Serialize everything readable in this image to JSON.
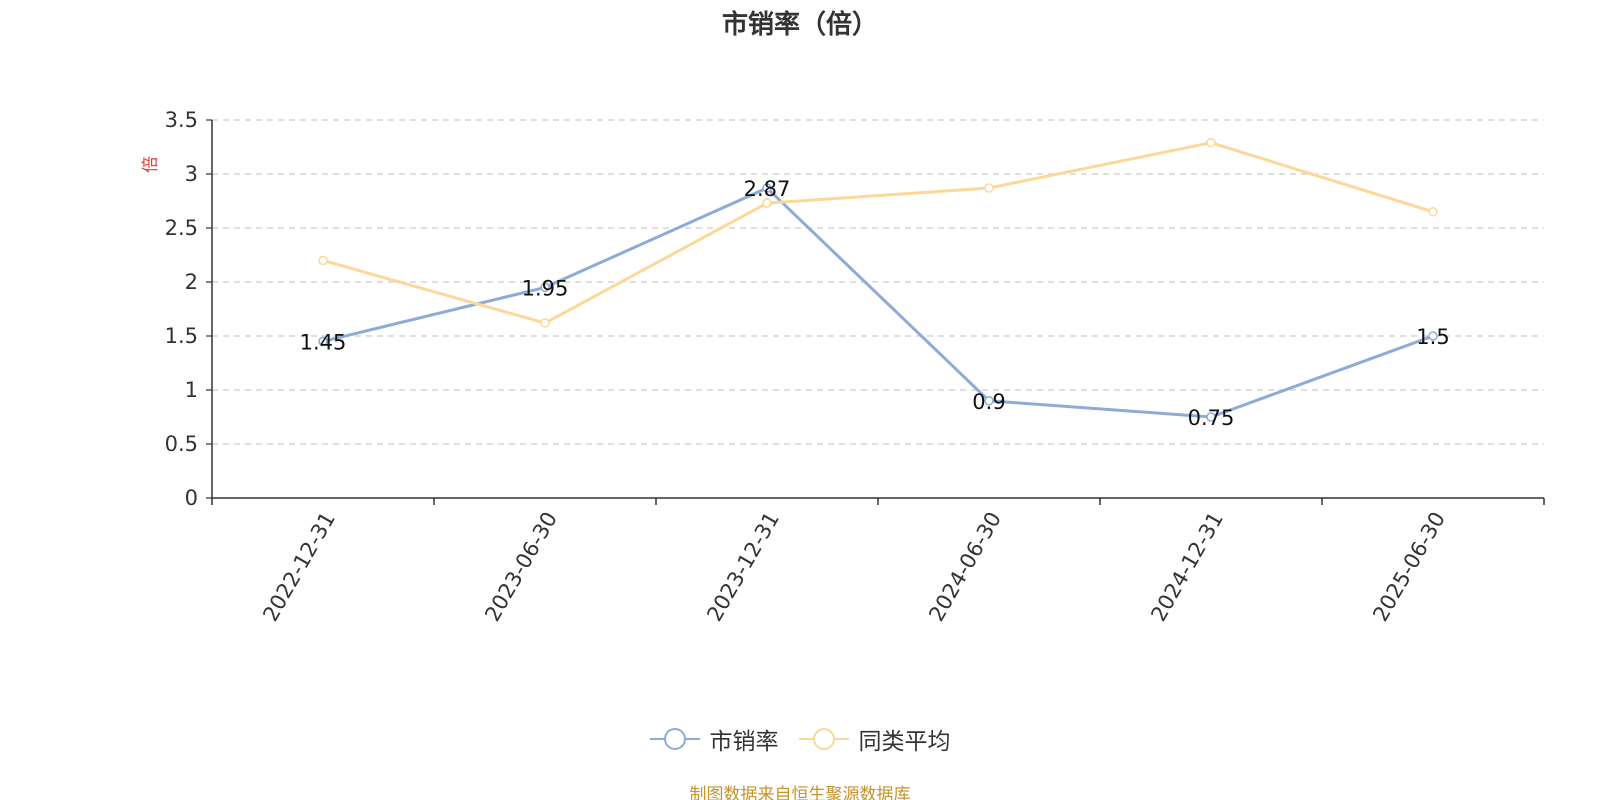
{
  "chart_data": {
    "type": "line",
    "title": "市销率（倍）",
    "ylabel": "倍",
    "xlabel": "",
    "categories": [
      "2022-12-31",
      "2023-06-30",
      "2023-12-31",
      "2024-06-30",
      "2024-12-31",
      "2025-06-30"
    ],
    "ylim": [
      0,
      3.5
    ],
    "yticks": [
      "0",
      "0.5",
      "1",
      "1.5",
      "2",
      "2.5",
      "3",
      "3.5"
    ],
    "grid": true,
    "legend_position": "bottom",
    "series": [
      {
        "name": "市销率",
        "color": "#8eabd6",
        "values": [
          1.45,
          1.95,
          2.87,
          0.9,
          0.75,
          1.5
        ],
        "labels": [
          "1.45",
          "1.95",
          "2.87",
          "0.9",
          "0.75",
          "1.5"
        ]
      },
      {
        "name": "同类平均",
        "color": "#fcd898",
        "values": [
          2.2,
          1.62,
          2.73,
          2.87,
          3.29,
          2.65
        ]
      }
    ],
    "source": "制图数据来自恒生聚源数据库"
  }
}
